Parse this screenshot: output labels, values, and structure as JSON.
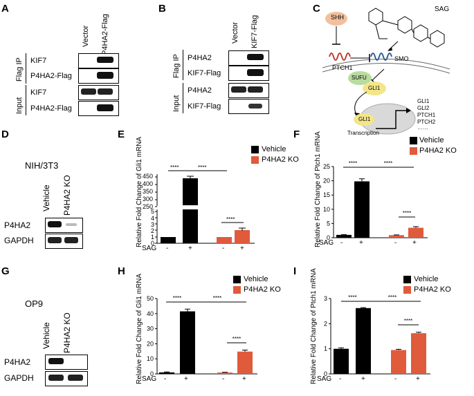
{
  "colors": {
    "vehicle": "#000000",
    "ko": "#e05a3c",
    "band": "#111111",
    "shh": "#f2c09e",
    "sufu": "#b8dca0",
    "gli": "#f3e68a",
    "nucleus": "#d9d9d9"
  },
  "panels": {
    "A": "A",
    "B": "B",
    "C": "C",
    "D": "D",
    "E": "E",
    "F": "F",
    "G": "G",
    "H": "H",
    "I": "I"
  },
  "blotA": {
    "lanes": [
      "Vector",
      "P4HA2-Flag"
    ],
    "group_ip": "Flag IP",
    "group_input": "Input",
    "rows": [
      "KIF7",
      "P4HA2-Flag",
      "KIF7",
      "P4HA2-Flag"
    ]
  },
  "blotB": {
    "lanes": [
      "Vector",
      "KIF7-Flag"
    ],
    "group_ip": "Flag IP",
    "group_input": "Input",
    "rows": [
      "P4HA2",
      "KIF7-Flag",
      "P4HA2",
      "KIF7-Flag"
    ]
  },
  "diagramC": {
    "shh": "SHH",
    "sag": "SAG",
    "ptch1": "PTCH1",
    "smo": "SMO",
    "sufu": "SUFU",
    "gli1": "GLI1",
    "gli1_nuc": "GLI1",
    "targets": [
      "GLI1",
      "GLI2",
      "PTCH1",
      "PTCH2",
      "……"
    ],
    "transcription": "Transcription"
  },
  "blotD": {
    "cell": "NIH/3T3",
    "lanes": [
      "Vehicle",
      "P4HA2 KO"
    ],
    "rows": [
      "P4HA2",
      "GAPDH"
    ]
  },
  "blotG": {
    "cell": "OP9",
    "lanes": [
      "Vehicle",
      "P4HA2 KO"
    ],
    "rows": [
      "P4HA2",
      "GAPDH"
    ]
  },
  "legend": {
    "vehicle": "Vehicle",
    "ko": "P4HA2 KO"
  },
  "sag_row": {
    "label": "SAG",
    "signs": [
      "-",
      "+",
      "-",
      "+"
    ]
  },
  "sig": "****",
  "chart_data": [
    {
      "id": "E",
      "type": "bar",
      "ylabel": "Relative Fold Change  of Gli1 mRNA",
      "categories": [
        "Vehicle SAG-",
        "Vehicle SAG+",
        "P4HA2 KO SAG-",
        "P4HA2 KO SAG+"
      ],
      "series": [
        {
          "name": "Vehicle",
          "values": [
            1,
            460,
            null,
            null
          ]
        },
        {
          "name": "P4HA2 KO",
          "values": [
            null,
            null,
            1,
            2.1
          ]
        }
      ],
      "broken_axis": true,
      "yticks_upper": [
        "450",
        "400",
        "350",
        "300",
        "250"
      ],
      "yticks_lower": [
        "5",
        "4",
        "3",
        "2",
        "1",
        "0"
      ]
    },
    {
      "id": "F",
      "type": "bar",
      "ylabel": "Relative Fold Change  of Ptch1 mRNA",
      "categories": [
        "Vehicle SAG-",
        "Vehicle SAG+",
        "P4HA2 KO SAG-",
        "P4HA2 KO SAG+"
      ],
      "series": [
        {
          "name": "Vehicle",
          "values": [
            1,
            19.8,
            null,
            null
          ]
        },
        {
          "name": "P4HA2 KO",
          "values": [
            null,
            null,
            0.9,
            3.5
          ]
        }
      ],
      "ylim": [
        0,
        25
      ],
      "yticks": [
        "0",
        "5",
        "10",
        "15",
        "20",
        "25"
      ]
    },
    {
      "id": "H",
      "type": "bar",
      "ylabel": "Relative Fold Change  of Gli1 mRNA",
      "categories": [
        "Vehicle SAG-",
        "Vehicle SAG+",
        "P4HA2 KO SAG-",
        "P4HA2 KO SAG+"
      ],
      "series": [
        {
          "name": "Vehicle",
          "values": [
            1,
            41.5,
            null,
            null
          ]
        },
        {
          "name": "P4HA2 KO",
          "values": [
            null,
            null,
            0.9,
            14.8
          ]
        }
      ],
      "ylim": [
        0,
        50
      ],
      "yticks": [
        "0",
        "10",
        "20",
        "30",
        "40",
        "50"
      ]
    },
    {
      "id": "I",
      "type": "bar",
      "ylabel": "Relative Fold Change  of Ptch1 mRNA",
      "categories": [
        "Vehicle SAG-",
        "Vehicle SAG+",
        "P4HA2 KO SAG-",
        "P4HA2 KO SAG+"
      ],
      "series": [
        {
          "name": "Vehicle",
          "values": [
            1,
            2.62,
            null,
            null
          ]
        },
        {
          "name": "P4HA2 KO",
          "values": [
            null,
            null,
            0.95,
            1.62
          ]
        }
      ],
      "ylim": [
        0,
        3
      ],
      "yticks": [
        "0",
        "1",
        "2",
        "3"
      ]
    }
  ]
}
